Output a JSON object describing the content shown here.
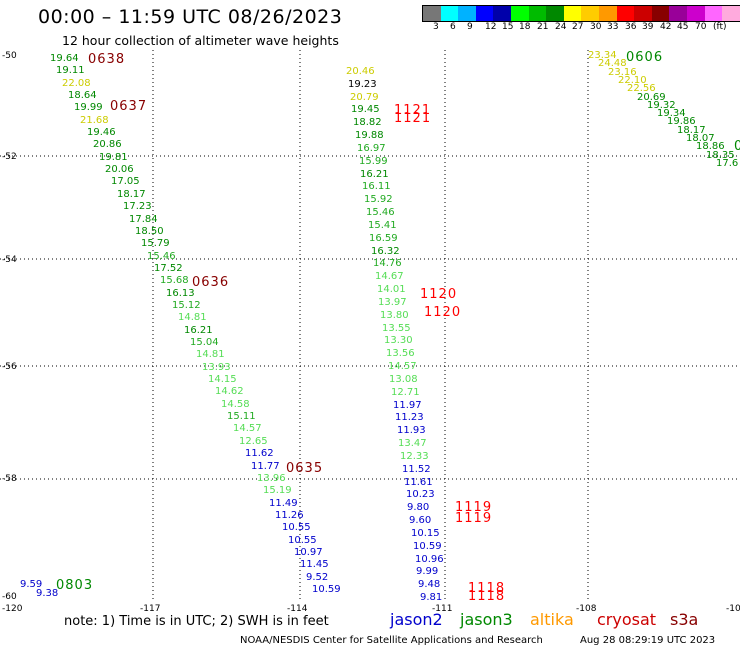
{
  "header": {
    "title": "00:00 – 11:59 UTC 08/26/2023",
    "subtitle": "12 hour collection of altimeter wave heights"
  },
  "scale": {
    "colors": [
      "#777777",
      "#00ffff",
      "#00b2ff",
      "#0000ff",
      "#0000aa",
      "#00ff00",
      "#00bb00",
      "#008800",
      "#ffff00",
      "#ffcc00",
      "#ff9900",
      "#ff0000",
      "#cc0000",
      "#880000",
      "#990099",
      "#cc00cc",
      "#ff66ff",
      "#ffaadd",
      "#000000"
    ],
    "labels": [
      "3",
      "6",
      "9",
      "12",
      "15",
      "18",
      "21",
      "24",
      "27",
      "30",
      "33",
      "36",
      "39",
      "42",
      "45",
      "70",
      "(ft)"
    ]
  },
  "axes": {
    "lat_labels": [
      "-50",
      "-52",
      "-54",
      "-56",
      "-58",
      "-60"
    ],
    "lon_labels": [
      "-120",
      "-117",
      "-114",
      "-111",
      "-108",
      "-10"
    ]
  },
  "footer": {
    "note": "note:  1) Time is in UTC;  2) SWH is in feet",
    "legend": [
      "jason2",
      "jason3",
      "altika",
      "cryosat",
      "s3a"
    ],
    "legend_colors": [
      "#0000cc",
      "#008800",
      "#ff9900",
      "#cc0000",
      "#880000"
    ],
    "credit": "NOAA/NESDIS Center for Satellite Applications and Research",
    "stamp": "Aug 28 08:29:19 UTC 2023"
  },
  "tracks": [
    {
      "pts": [
        [
          "19.64",
          "#008800"
        ],
        [
          "19.11",
          "#008800"
        ],
        [
          "22.08",
          "#cccc00"
        ],
        [
          "18.64",
          "#008800"
        ],
        [
          "19.99",
          "#008800"
        ],
        [
          "21.68",
          "#cccc00"
        ],
        [
          "19.46",
          "#008800"
        ],
        [
          "20.86",
          "#008800"
        ],
        [
          "19.81",
          "#008800"
        ],
        [
          "20.06",
          "#008800"
        ],
        [
          "17.05",
          "#008800"
        ],
        [
          "18.17",
          "#008800"
        ],
        [
          "17.23",
          "#008800"
        ],
        [
          "17.84",
          "#008800"
        ],
        [
          "18.50",
          "#008800"
        ],
        [
          "15.79",
          "#008800"
        ],
        [
          "15.46",
          "#22aa22"
        ],
        [
          "17.52",
          "#008800"
        ],
        [
          "15.68",
          "#22aa22"
        ],
        [
          "16.13",
          "#008800"
        ],
        [
          "15.12",
          "#22aa22"
        ],
        [
          "14.81",
          "#55dd55"
        ],
        [
          "16.21",
          "#008800"
        ],
        [
          "15.04",
          "#22aa22"
        ],
        [
          "14.81",
          "#55dd55"
        ],
        [
          "13.93",
          "#55dd55"
        ],
        [
          "14.15",
          "#55dd55"
        ],
        [
          "14.62",
          "#55dd55"
        ],
        [
          "14.58",
          "#55dd55"
        ],
        [
          "15.11",
          "#22aa22"
        ],
        [
          "14.57",
          "#55dd55"
        ],
        [
          "12.65",
          "#55dd55"
        ],
        [
          "11.62",
          "#0000cc"
        ],
        [
          "11.77",
          "#0000cc"
        ],
        [
          "13.96",
          "#55dd55"
        ],
        [
          "15.19",
          "#55dd55"
        ],
        [
          "11.49",
          "#0000cc"
        ],
        [
          "11.26",
          "#0000cc"
        ],
        [
          "10.55",
          "#0000cc"
        ],
        [
          "10.55",
          "#0000cc"
        ],
        [
          "10.97",
          "#0000cc"
        ],
        [
          "11.45",
          "#0000cc"
        ],
        [
          "9.52",
          "#0000cc"
        ],
        [
          "10.59",
          "#0000cc"
        ]
      ]
    },
    {
      "pts": [
        [
          "20.46",
          "#cccc00"
        ],
        [
          "19.23",
          "#000000"
        ],
        [
          "20.79",
          "#cccc00"
        ],
        [
          "19.45",
          "#008800"
        ],
        [
          "18.82",
          "#008800"
        ],
        [
          "19.88",
          "#008800"
        ],
        [
          "16.97",
          "#22aa22"
        ],
        [
          "15.99",
          "#22aa22"
        ],
        [
          "16.21",
          "#008800"
        ],
        [
          "16.11",
          "#22aa22"
        ],
        [
          "15.92",
          "#22aa22"
        ],
        [
          "15.46",
          "#22aa22"
        ],
        [
          "15.41",
          "#22aa22"
        ],
        [
          "16.59",
          "#22aa22"
        ],
        [
          "16.32",
          "#008800"
        ],
        [
          "14.76",
          "#22aa22"
        ],
        [
          "14.67",
          "#55dd55"
        ],
        [
          "14.01",
          "#55dd55"
        ],
        [
          "13.97",
          "#55dd55"
        ],
        [
          "13.80",
          "#55dd55"
        ],
        [
          "13.55",
          "#55dd55"
        ],
        [
          "13.30",
          "#55dd55"
        ],
        [
          "13.56",
          "#55dd55"
        ],
        [
          "14.57",
          "#55dd55"
        ],
        [
          "13.08",
          "#55dd55"
        ],
        [
          "12.71",
          "#55dd55"
        ],
        [
          "11.97",
          "#0000cc"
        ],
        [
          "11.23",
          "#0000cc"
        ],
        [
          "11.93",
          "#0000cc"
        ],
        [
          "13.47",
          "#55dd55"
        ],
        [
          "12.33",
          "#55dd55"
        ],
        [
          "11.52",
          "#0000cc"
        ],
        [
          "11.61",
          "#0000cc"
        ],
        [
          "10.23",
          "#0000cc"
        ],
        [
          "9.80",
          "#0000cc"
        ],
        [
          "9.60",
          "#0000cc"
        ],
        [
          "10.15",
          "#0000cc"
        ],
        [
          "10.59",
          "#0000cc"
        ],
        [
          "10.96",
          "#0000cc"
        ],
        [
          "9.99",
          "#0000cc"
        ],
        [
          "9.48",
          "#0000cc"
        ],
        [
          "9.81",
          "#0000cc"
        ]
      ]
    },
    {
      "pts": [
        [
          "23.34",
          "#cccc00"
        ],
        [
          "24.48",
          "#cccc00"
        ],
        [
          "23.16",
          "#cccc00"
        ],
        [
          "22.10",
          "#cccc00"
        ],
        [
          "22.56",
          "#cccc00"
        ],
        [
          "20.69",
          "#008800"
        ],
        [
          "19.32",
          "#008800"
        ],
        [
          "19.34",
          "#008800"
        ],
        [
          "19.86",
          "#008800"
        ],
        [
          "18.17",
          "#008800"
        ],
        [
          "18.07",
          "#008800"
        ],
        [
          "18.86",
          "#008800"
        ],
        [
          "18.35",
          "#008800"
        ],
        [
          "17.6",
          "#008800"
        ]
      ]
    },
    {
      "pts": [
        [
          "9.59",
          "#0000cc"
        ],
        [
          "9.38",
          "#0000cc"
        ]
      ]
    }
  ],
  "times": [
    {
      "t": "0638",
      "c": "#880000"
    },
    {
      "t": "0637",
      "c": "#880000"
    },
    {
      "t": "0636",
      "c": "#880000"
    },
    {
      "t": "0635",
      "c": "#880000"
    },
    {
      "t": "1121",
      "c": "#ff0000"
    },
    {
      "t": "1121",
      "c": "#ff0000"
    },
    {
      "t": "1120",
      "c": "#ff0000"
    },
    {
      "t": "1120",
      "c": "#ff0000"
    },
    {
      "t": "1119",
      "c": "#ff0000"
    },
    {
      "t": "1119",
      "c": "#ff0000"
    },
    {
      "t": "1118",
      "c": "#ff0000"
    },
    {
      "t": "1118",
      "c": "#ff0000"
    },
    {
      "t": "0606",
      "c": "#008800"
    },
    {
      "t": "0",
      "c": "#008800"
    },
    {
      "t": "0803",
      "c": "#008800"
    }
  ]
}
